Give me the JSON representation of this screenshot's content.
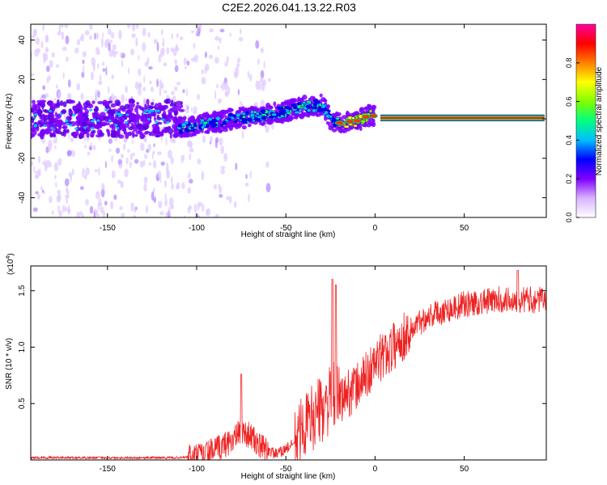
{
  "title": "C2E2.2026.041.13.22.R03",
  "chart_data": [
    {
      "type": "heatmap",
      "name": "spectrogram",
      "xlabel": "Height of straight line (km)",
      "ylabel": "Frequency (Hz)",
      "xlim": [
        -193,
        96
      ],
      "ylim": [
        -50,
        48
      ],
      "xticks": [
        -150,
        -100,
        -50,
        0,
        50
      ],
      "xtick_labels": [
        "-150",
        "-100",
        "-50",
        "0",
        "50"
      ],
      "yticks": [
        -40,
        -20,
        0,
        20,
        40
      ],
      "ytick_labels": [
        "-40",
        "-20",
        "0",
        "20",
        "40"
      ],
      "ridge": {
        "x": [
          -110,
          -100,
          -90,
          -80,
          -70,
          -60,
          -50,
          -40,
          -30,
          -25,
          -20,
          -10,
          -5,
          -2,
          0,
          5,
          50,
          95
        ],
        "y": [
          -5,
          -3,
          -2,
          0,
          1,
          2,
          4,
          6,
          7,
          0,
          -2,
          -1,
          1,
          2,
          1,
          0.5,
          0.5,
          0.5
        ]
      },
      "colorbar": {
        "label": "Normalized spectral amplitude",
        "range": [
          0.0,
          1.0
        ],
        "ticks": [
          0.0,
          0.2,
          0.4,
          0.6,
          0.8
        ],
        "tick_labels": [
          "0.0",
          "0.2",
          "0.4",
          "0.6",
          "0.8"
        ],
        "colors": [
          "#ffffff",
          "#d9b3ff",
          "#7f00ff",
          "#0000ff",
          "#00bfff",
          "#00ff80",
          "#80ff00",
          "#ffff00",
          "#ff8000",
          "#ff0000",
          "#ff00a0"
        ]
      }
    },
    {
      "type": "line",
      "name": "snr",
      "xlabel": "Height of straight line (km)",
      "ylabel": "SNR (10 * v/v)",
      "multiplier": "(x10",
      "multiplier_exp": "4",
      "xlim": [
        -193,
        96
      ],
      "ylim": [
        0,
        1.72
      ],
      "xticks": [
        -150,
        -100,
        -50,
        0,
        50
      ],
      "xtick_labels": [
        "-150",
        "-100",
        "-50",
        "0",
        "50"
      ],
      "yticks": [
        0.5,
        1.0,
        1.5
      ],
      "ytick_labels": [
        "0.5",
        "1.0",
        "1.5"
      ],
      "line_color": "#ee2222",
      "trend": {
        "x": [
          -193,
          -110,
          -100,
          -90,
          -80,
          -75,
          -70,
          -65,
          -55,
          -45,
          -40,
          -35,
          -30,
          -27,
          -24,
          -22,
          -20,
          -15,
          -10,
          -5,
          0,
          5,
          10,
          15,
          20,
          25,
          30,
          40,
          50,
          60,
          70,
          80,
          96
        ],
        "y": [
          0.02,
          0.02,
          0.03,
          0.08,
          0.18,
          0.25,
          0.22,
          0.12,
          0.05,
          0.15,
          0.3,
          0.38,
          0.45,
          0.5,
          0.55,
          0.6,
          0.52,
          0.6,
          0.65,
          0.75,
          0.85,
          0.93,
          1.0,
          1.08,
          1.15,
          1.22,
          1.28,
          1.33,
          1.38,
          1.4,
          1.42,
          1.42,
          1.42
        ]
      },
      "peaks": [
        {
          "x": -75,
          "y": 0.76
        },
        {
          "x": -24,
          "y": 1.6
        },
        {
          "x": -22,
          "y": 1.55
        },
        {
          "x": 80,
          "y": 1.68
        }
      ]
    }
  ]
}
